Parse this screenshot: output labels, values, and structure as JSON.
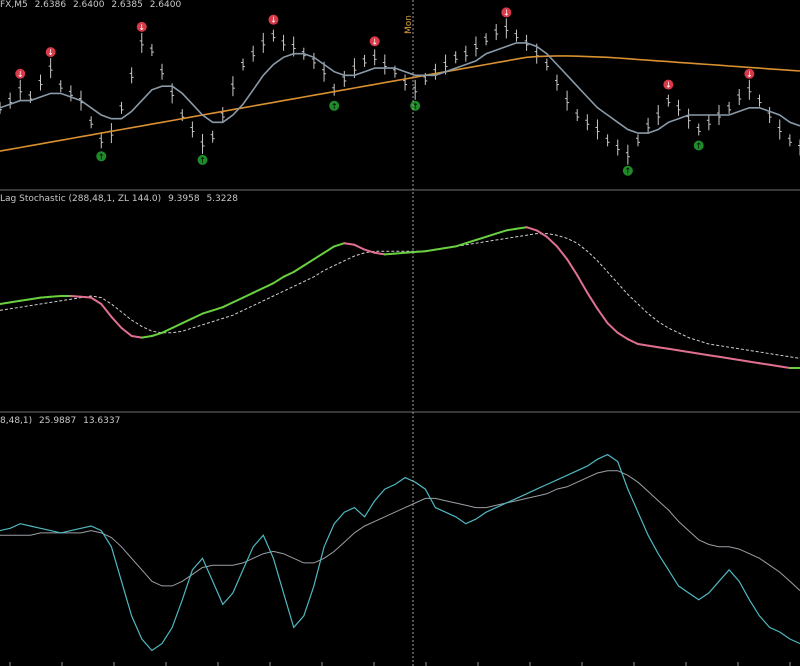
{
  "header": {
    "symbol": "FX,M5",
    "prices": [
      "2.6386",
      "2.6400",
      "2.6385",
      "2.6400"
    ]
  },
  "panel2": {
    "title": "Lag Stochastic (288,48,1, ZL 144.0)",
    "values": [
      "9.3958",
      "5.3228"
    ]
  },
  "panel3": {
    "title": "8,48,1)",
    "values": [
      "25.9887",
      "13.6337"
    ]
  },
  "separator_label": "Mon",
  "colors": {
    "background": "#000000",
    "price": "#c8c8c8",
    "ma_gray": "#8a9aa8",
    "ma_orange": "#d89030",
    "arrow_up": "#1f8a2a",
    "arrow_down": "#d83a4a",
    "stoch_up": "#6ad040",
    "stoch_down": "#e07090",
    "stoch_signal": "#d0d0d0",
    "osc_main": "#4fb8c0",
    "osc_signal": "#9aa0a6",
    "separator": "#909090"
  },
  "chart_data": [
    {
      "type": "line",
      "panel": "price",
      "series": [
        {
          "values": [
            1.2,
            1.4,
            1.7,
            1.5,
            1.9,
            2.3,
            1.8,
            1.6,
            1.4,
            0.8,
            0.3,
            0.5,
            1.2,
            2.1,
            3.0,
            2.8,
            2.2,
            1.6,
            1.0,
            0.6,
            0.2,
            0.4,
            1.0,
            1.8,
            2.4,
            2.7,
            3.0,
            3.2,
            3.0,
            2.9,
            2.7,
            2.5,
            2.2,
            1.7,
            2.0,
            2.3,
            2.5,
            2.6,
            2.4,
            2.2,
            1.9,
            1.7,
            2.0,
            2.2,
            2.4,
            2.6,
            2.7,
            2.9,
            3.1,
            3.3,
            3.4,
            3.2,
            3.0,
            2.7,
            2.4,
            1.9,
            1.4,
            1.0,
            0.8,
            0.6,
            0.3,
            0.1,
            -0.1,
            0.3,
            0.7,
            1.0,
            1.4,
            1.2,
            0.9,
            0.6,
            0.8,
            1.0,
            1.2,
            1.5,
            1.7,
            1.4,
            1.0,
            0.6,
            0.3,
            0.1
          ]
        },
        {
          "values": [
            1.2,
            1.3,
            1.4,
            1.4,
            1.5,
            1.6,
            1.6,
            1.5,
            1.4,
            1.2,
            1.0,
            0.9,
            0.9,
            1.1,
            1.4,
            1.7,
            1.8,
            1.8,
            1.6,
            1.3,
            1.0,
            0.8,
            0.8,
            1.0,
            1.3,
            1.7,
            2.1,
            2.4,
            2.6,
            2.7,
            2.7,
            2.6,
            2.4,
            2.2,
            2.1,
            2.1,
            2.2,
            2.3,
            2.3,
            2.3,
            2.2,
            2.1,
            2.1,
            2.1,
            2.2,
            2.3,
            2.4,
            2.5,
            2.7,
            2.8,
            2.9,
            3.0,
            3.0,
            2.9,
            2.7,
            2.4,
            2.1,
            1.8,
            1.5,
            1.2,
            1.0,
            0.8,
            0.6,
            0.5,
            0.5,
            0.6,
            0.8,
            0.9,
            1.0,
            1.0,
            1.0,
            1.0,
            1.0,
            1.1,
            1.2,
            1.2,
            1.1,
            1.0,
            0.8,
            0.7
          ]
        },
        {
          "values": [
            0.0,
            0.05,
            0.1,
            0.15,
            0.2,
            0.25,
            0.3,
            0.35,
            0.4,
            0.45,
            0.5,
            0.55,
            0.6,
            0.65,
            0.7,
            0.75,
            0.8,
            0.85,
            0.9,
            0.95,
            1.0,
            1.05,
            1.1,
            1.15,
            1.2,
            1.25,
            1.3,
            1.35,
            1.4,
            1.45,
            1.5,
            1.55,
            1.6,
            1.65,
            1.7,
            1.75,
            1.8,
            1.85,
            1.9,
            1.95,
            2.0,
            2.05,
            2.1,
            2.15,
            2.2,
            2.25,
            2.3,
            2.35,
            2.4,
            2.45,
            2.5,
            2.55,
            2.6,
            2.62,
            2.63,
            2.64,
            2.64,
            2.63,
            2.62,
            2.61,
            2.6,
            2.58,
            2.56,
            2.54,
            2.52,
            2.5,
            2.48,
            2.46,
            2.44,
            2.42,
            2.4,
            2.38,
            2.36,
            2.34,
            2.32,
            2.3,
            2.28,
            2.26,
            2.24,
            2.22
          ]
        }
      ],
      "ylim": [
        -0.8,
        3.8
      ]
    },
    {
      "type": "line",
      "panel": "lag-stochastic",
      "series": [
        {
          "values": [
            40,
            41,
            42,
            43,
            44,
            44.5,
            45,
            45,
            44.5,
            44,
            40,
            32,
            25,
            20,
            19,
            20,
            22,
            25,
            28,
            31,
            34,
            36,
            38,
            41,
            44,
            47,
            50,
            53,
            57,
            60,
            64,
            68,
            72,
            76,
            78,
            77,
            74,
            72,
            71,
            71.5,
            72,
            72.5,
            73,
            74,
            75,
            76,
            78,
            80,
            82,
            84,
            86,
            87,
            88,
            86,
            82,
            76,
            68,
            58,
            47,
            37,
            28,
            22,
            18,
            15,
            14,
            13,
            12,
            11,
            10,
            9,
            8,
            7,
            6,
            5,
            4,
            3,
            2,
            1,
            0,
            0
          ]
        },
        {
          "values": [
            36,
            37,
            38,
            39,
            40,
            41,
            42,
            43,
            44,
            45,
            44,
            40,
            35,
            30,
            26,
            23,
            22,
            22,
            23,
            25,
            27,
            29,
            31,
            33,
            36,
            39,
            42,
            45,
            48,
            51,
            54,
            57,
            61,
            64,
            67,
            70,
            72,
            73,
            73,
            73,
            73,
            73,
            73,
            74,
            75,
            76,
            77,
            78,
            79,
            80,
            81,
            82,
            83,
            84,
            84,
            83,
            81,
            78,
            73,
            67,
            60,
            53,
            46,
            40,
            34,
            29,
            25,
            22,
            19,
            17,
            15,
            14,
            13,
            12,
            11,
            10,
            9,
            8,
            7,
            6
          ]
        }
      ],
      "ylim": [
        -20,
        105
      ]
    },
    {
      "type": "line",
      "panel": "oscillator",
      "series": [
        {
          "values": [
            52,
            53,
            55,
            54,
            53,
            52,
            51,
            52,
            53,
            54,
            52,
            45,
            30,
            15,
            5,
            0,
            3,
            10,
            22,
            35,
            40,
            30,
            20,
            25,
            35,
            45,
            50,
            40,
            25,
            10,
            15,
            28,
            45,
            55,
            60,
            62,
            58,
            65,
            70,
            72,
            75,
            73,
            70,
            62,
            60,
            58,
            55,
            57,
            60,
            62,
            64,
            66,
            68,
            70,
            72,
            74,
            76,
            78,
            80,
            83,
            85,
            82,
            70,
            60,
            50,
            42,
            35,
            28,
            25,
            22,
            25,
            30,
            35,
            30,
            22,
            15,
            10,
            8,
            5,
            3
          ]
        },
        {
          "values": [
            50,
            50,
            50,
            50,
            51,
            51,
            51,
            51,
            51,
            52,
            51,
            49,
            45,
            40,
            35,
            30,
            28,
            28,
            30,
            33,
            36,
            37,
            37,
            37,
            38,
            40,
            42,
            43,
            42,
            40,
            38,
            38,
            40,
            43,
            47,
            51,
            54,
            56,
            58,
            60,
            62,
            64,
            66,
            66,
            65,
            64,
            63,
            62,
            62,
            63,
            64,
            65,
            66,
            67,
            68,
            70,
            71,
            73,
            75,
            77,
            78,
            78,
            76,
            73,
            69,
            65,
            61,
            56,
            52,
            48,
            46,
            45,
            45,
            44,
            42,
            40,
            37,
            34,
            30,
            26
          ]
        }
      ],
      "ylim": [
        -5,
        100
      ]
    }
  ]
}
